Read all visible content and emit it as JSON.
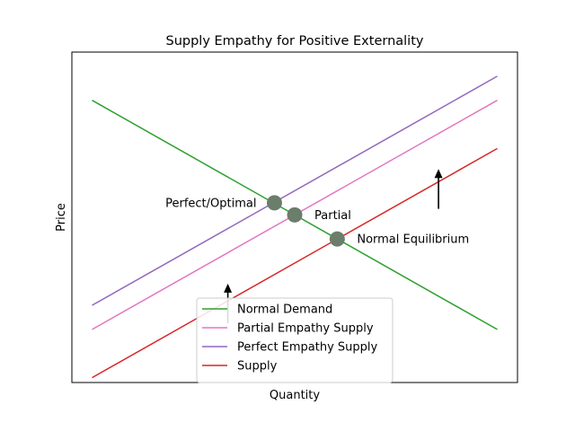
{
  "chart_data": {
    "type": "line",
    "title": "Supply Empathy for Positive Externality",
    "xlabel": "Quantity",
    "ylabel": "Price",
    "xlim": [
      -0.5,
      10.5
    ],
    "ylim": [
      -1.2,
      12.5
    ],
    "show_ticks": false,
    "grid": false,
    "legend_position": "lower center",
    "series": [
      {
        "name": "Normal Demand",
        "color": "#2ca02c",
        "x": [
          0,
          10
        ],
        "y": [
          10.5,
          1.0
        ]
      },
      {
        "name": "Partial Empathy Supply",
        "color": "#e377c2",
        "x": [
          0,
          10
        ],
        "y": [
          1.0,
          10.5
        ]
      },
      {
        "name": "Perfect Empathy Supply",
        "color": "#9467bd",
        "x": [
          0,
          10
        ],
        "y": [
          2.0,
          11.5
        ]
      },
      {
        "name": "Supply",
        "color": "#d62728",
        "x": [
          0,
          10
        ],
        "y": [
          -1.0,
          8.5
        ]
      }
    ],
    "points": [
      {
        "label": "Perfect/Optimal",
        "x": 4.5,
        "y": 6.25,
        "label_side": "left"
      },
      {
        "label": "Partial",
        "x": 5.0,
        "y": 5.75,
        "label_side": "right"
      },
      {
        "label": "Normal Equilibrium",
        "x": 6.05,
        "y": 4.75,
        "label_side": "right"
      }
    ],
    "point_color": "#6b7d6b",
    "arrows": [
      {
        "x": 3.35,
        "from": 1.25,
        "to": 2.9
      },
      {
        "x": 8.55,
        "from": 6.0,
        "to": 7.65
      }
    ]
  }
}
